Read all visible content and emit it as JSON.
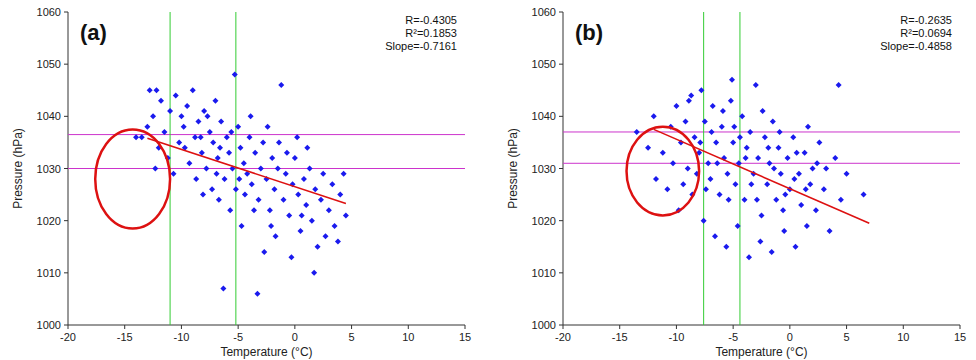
{
  "chart_data": [
    {
      "type": "scatter",
      "label": "(a)",
      "stats": [
        "R=-0.4305",
        "R²=0.1853",
        "Slope=-0.7161"
      ],
      "x_label": "Temperature (°C)",
      "y_label": "Pressure (hPa)",
      "xlim": [
        -20,
        15
      ],
      "xticks": [
        -20,
        -15,
        -10,
        -5,
        0,
        5,
        10,
        15
      ],
      "ylim": [
        1000,
        1060
      ],
      "yticks": [
        1000,
        1010,
        1020,
        1030,
        1040,
        1050,
        1060
      ],
      "grid": false,
      "vlines": [
        -11,
        -5.2
      ],
      "hlines": [
        1036.5,
        1030
      ],
      "highlight": {
        "x": -14.3,
        "y": 1028,
        "rx": 3.3,
        "ry": 9.5
      },
      "series": [
        {
          "type": "scatter",
          "color": "#1a1aee",
          "marker": "diamond",
          "x": [
            -13.5,
            -12.8,
            -12.2,
            -11.8,
            -12.5,
            -13,
            -11.5,
            -12,
            -11,
            -10.5,
            -10,
            -9.8,
            -10.2,
            -9.5,
            -9,
            -8.8,
            -8.5,
            -8,
            -8.2,
            -7.5,
            -7.8,
            -7,
            -7.2,
            -6.8,
            -6.5,
            -6.2,
            -6,
            -5.8,
            -5.5,
            -5.3,
            -5,
            -5.2,
            -4.8,
            -4.5,
            -4.2,
            -4,
            -3.8,
            -3.5,
            -3.2,
            -3,
            -2.8,
            -2.5,
            -2.2,
            -2,
            -1.8,
            -1.5,
            -1.2,
            -1,
            -0.8,
            -0.5,
            -0.2,
            0,
            0.3,
            0.5,
            0.8,
            1,
            1.3,
            1.5,
            1.8,
            2,
            2.3,
            2.5,
            3,
            3.3,
            3.5,
            4,
            4.5,
            4.3,
            -9.3,
            -8.7,
            -7.3,
            -6.7,
            -6.3,
            -3.3,
            -4.7,
            -5.7,
            -2.7,
            -1.7,
            -0.3,
            1.7,
            -11.2,
            -10.7,
            -9.7,
            -8.3,
            -7.7,
            -6.6,
            -5.6,
            -4.4,
            -3.6,
            -2.4,
            -1.4,
            -0.7,
            0.2,
            1.1,
            -14,
            -12.3,
            -8.1,
            -6.9,
            -4.9,
            -3.9,
            -2.1,
            0.6,
            2.7,
            3.8
          ],
          "values": [
            1036,
            1045,
            1045,
            1043,
            1040,
            1038,
            1037,
            1034,
            1041,
            1044,
            1040,
            1038,
            1035,
            1042,
            1045,
            1036,
            1039,
            1041,
            1033,
            1037,
            1030,
            1043,
            1035,
            1032,
            1039,
            1028,
            1036,
            1033,
            1030,
            1048,
            1038,
            1026,
            1034,
            1031,
            1029,
            1036,
            1027,
            1033,
            1024,
            1030,
            1035,
            1028,
            1022,
            1032,
            1026,
            1030,
            1046,
            1024,
            1029,
            1021,
            1027,
            1032,
            1025,
            1018,
            1028,
            1023,
            1030,
            1020,
            1026,
            1015,
            1024,
            1029,
            1022,
            1027,
            1019,
            1025,
            1021,
            1029,
            1031,
            1028,
            1026,
            1024,
            1007,
            1006,
            1019,
            1022,
            1014,
            1017,
            1013,
            1010,
            1032,
            1029,
            1034,
            1036,
            1040,
            1034,
            1037,
            1025,
            1022,
            1038,
            1035,
            1033,
            1036,
            1034,
            1036,
            1030,
            1025,
            1029,
            1028,
            1040,
            1019,
            1021,
            1017,
            1016
          ]
        },
        {
          "type": "line",
          "color": "#dd1111",
          "line_style": "solid",
          "x": [
            -13,
            4.5
          ],
          "values": [
            1035.8,
            1023.3
          ]
        }
      ]
    },
    {
      "type": "scatter",
      "label": "(b)",
      "stats": [
        "R=-0.2635",
        "R²=0.0694",
        "Slope=-0.4858"
      ],
      "x_label": "Temperature (°C)",
      "y_label": "Pressure (hPa)",
      "xlim": [
        -20,
        15
      ],
      "xticks": [
        -20,
        -15,
        -10,
        -5,
        0,
        5,
        10,
        15
      ],
      "ylim": [
        1000,
        1060
      ],
      "yticks": [
        1000,
        1010,
        1020,
        1030,
        1040,
        1050,
        1060
      ],
      "grid": false,
      "vlines": [
        -7.6,
        -4.4
      ],
      "hlines": [
        1037,
        1031
      ],
      "highlight": {
        "x": -11.2,
        "y": 1029.5,
        "rx": 3.2,
        "ry": 8.5
      },
      "series": [
        {
          "type": "scatter",
          "color": "#1a1aee",
          "marker": "diamond",
          "x": [
            -13.5,
            -12,
            -11.2,
            -10.5,
            -10,
            -9.6,
            -9.2,
            -9,
            -8.7,
            -8.4,
            -8,
            -7.8,
            -7.5,
            -7.2,
            -7,
            -6.8,
            -6.5,
            -6.2,
            -6,
            -5.8,
            -5.5,
            -5.2,
            -5,
            -4.8,
            -4.5,
            -4.2,
            -4,
            -3.8,
            -3.5,
            -3.2,
            -3,
            -2.8,
            -2.5,
            -2.2,
            -2,
            -1.8,
            -1.5,
            -1.2,
            -1,
            -0.8,
            -0.5,
            -0.2,
            0,
            0.3,
            0.5,
            0.8,
            1,
            1.3,
            1.5,
            1.8,
            2,
            2.3,
            2.6,
            3,
            3.5,
            4,
            4.3,
            4.5,
            5,
            6.5,
            -11.8,
            -10.8,
            -9.8,
            -8.6,
            -7.6,
            -6.6,
            -5.6,
            -4.6,
            -3.6,
            -2.6,
            -1.6,
            -0.6,
            0.6,
            1.6,
            -12.5,
            -9.4,
            -8.2,
            -7.4,
            -6.4,
            -5.4,
            -4.4,
            -3.4,
            -2.4,
            -1.4,
            -0.4,
            0.4,
            1.4,
            2.4,
            -7.9,
            -6.9,
            -5.9,
            -4.9,
            -3.9,
            -2.9,
            -1.9,
            -0.9,
            3.2,
            -8.9,
            -10.3,
            -5.1
          ],
          "values": [
            1037,
            1040,
            1033,
            1038,
            1042,
            1035,
            1039,
            1030,
            1044,
            1036,
            1033,
            1045,
            1039,
            1031,
            1028,
            1042,
            1035,
            1025,
            1038,
            1032,
            1029,
            1043,
            1035,
            1027,
            1031,
            1040,
            1024,
            1034,
            1037,
            1029,
            1046,
            1032,
            1021,
            1036,
            1027,
            1031,
            1039,
            1024,
            1034,
            1029,
            1018,
            1032,
            1026,
            1036,
            1015,
            1029,
            1023,
            1033,
            1019,
            1027,
            1030,
            1022,
            1035,
            1026,
            1018,
            1032,
            1046,
            1024,
            1029,
            1025,
            1028,
            1026,
            1022,
            1025,
            1020,
            1017,
            1015,
            1019,
            1013,
            1016,
            1014,
            1022,
            1033,
            1038,
            1034,
            1027,
            1029,
            1026,
            1031,
            1024,
            1036,
            1027,
            1041,
            1030,
            1025,
            1028,
            1026,
            1031,
            1035,
            1037,
            1041,
            1038,
            1032,
            1024,
            1034,
            1037,
            1030,
            1043,
            1031,
            1047
          ]
        },
        {
          "type": "line",
          "color": "#dd1111",
          "line_style": "solid",
          "x": [
            -12,
            7
          ],
          "values": [
            1037.5,
            1019.5
          ]
        }
      ]
    }
  ]
}
